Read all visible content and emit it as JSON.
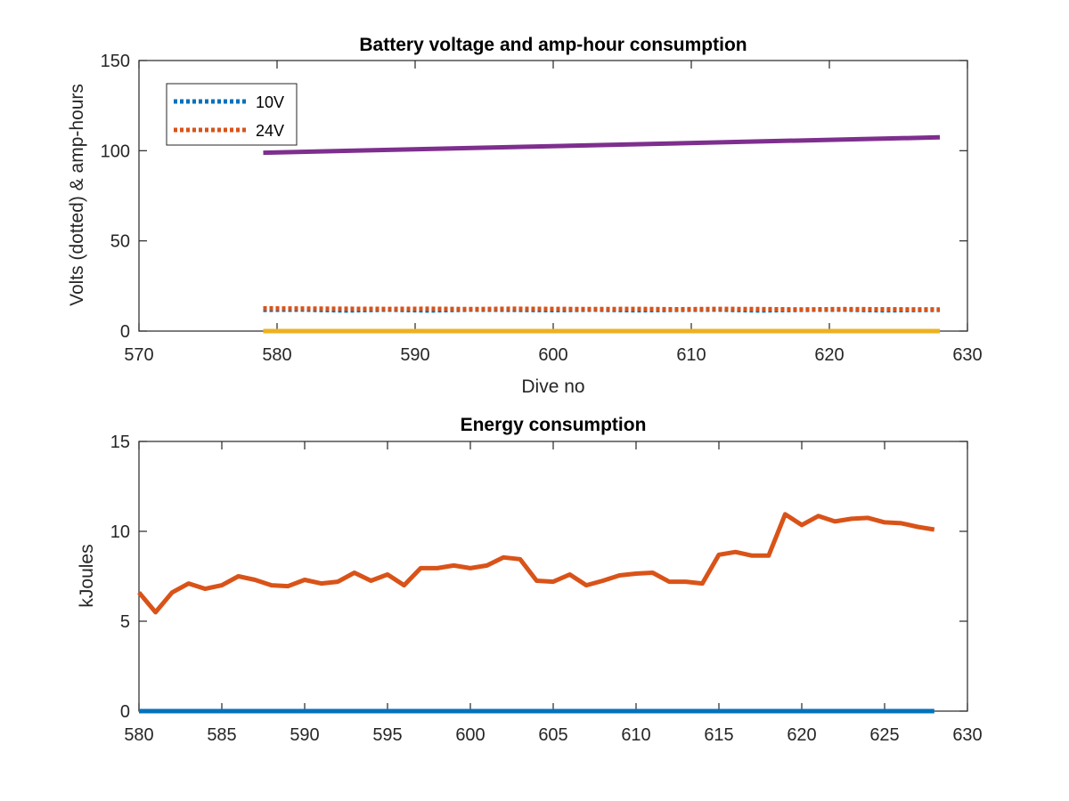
{
  "chart_data": [
    {
      "type": "line",
      "title": "Battery voltage and amp-hour consumption",
      "xlabel": "Dive no",
      "ylabel": "Volts (dotted) & amp-hours",
      "xlim": [
        570,
        630
      ],
      "ylim": [
        0,
        150
      ],
      "xticks": [
        570,
        580,
        590,
        600,
        610,
        620,
        630
      ],
      "yticks": [
        0,
        50,
        100,
        150
      ],
      "grid": false,
      "legend": {
        "position": "top-left",
        "entries": [
          "10V",
          "24V"
        ]
      },
      "series": [
        {
          "name": "10V",
          "style": "dotted",
          "color": "#0072BD",
          "x": [
            579,
            582,
            585,
            588,
            591,
            594,
            597,
            600,
            603,
            606,
            609,
            612,
            615,
            618,
            621,
            624,
            628
          ],
          "y": [
            11.8,
            11.9,
            11.4,
            11.9,
            11.4,
            11.9,
            11.8,
            11.6,
            11.9,
            11.5,
            11.8,
            11.9,
            11.4,
            11.8,
            11.9,
            11.5,
            11.8
          ]
        },
        {
          "name": "24V",
          "style": "dotted",
          "color": "#D95319",
          "x": [
            579,
            582,
            585,
            588,
            591,
            594,
            597,
            600,
            603,
            606,
            609,
            612,
            615,
            618,
            621,
            624,
            628
          ],
          "y": [
            12.6,
            12.5,
            12.4,
            12.3,
            12.4,
            12.2,
            12.4,
            12.3,
            12.2,
            12.3,
            12.1,
            12.3,
            12.2,
            12.0,
            12.2,
            12.1,
            12.0
          ]
        },
        {
          "style": "solid",
          "color": "#EDB120",
          "x": [
            579,
            628
          ],
          "y": [
            0,
            0
          ]
        },
        {
          "style": "solid",
          "color": "#7E2F8E",
          "x": [
            579,
            628
          ],
          "y": [
            98.9,
            107.4
          ]
        }
      ]
    },
    {
      "type": "line",
      "title": "Energy consumption",
      "xlabel": "",
      "ylabel": "kJoules",
      "xlim": [
        580,
        630
      ],
      "ylim": [
        0,
        15
      ],
      "xticks": [
        580,
        585,
        590,
        595,
        600,
        605,
        610,
        615,
        620,
        625,
        630
      ],
      "yticks": [
        0,
        5,
        10,
        15
      ],
      "grid": false,
      "series": [
        {
          "style": "solid",
          "color": "#0072BD",
          "x": [
            580,
            628
          ],
          "y": [
            0,
            0
          ]
        },
        {
          "style": "solid",
          "color": "#D95319",
          "x": [
            580,
            581,
            582,
            583,
            584,
            585,
            586,
            587,
            588,
            589,
            590,
            591,
            592,
            593,
            594,
            595,
            596,
            597,
            598,
            599,
            600,
            601,
            602,
            603,
            604,
            605,
            606,
            607,
            608,
            609,
            610,
            611,
            612,
            613,
            614,
            615,
            616,
            617,
            618,
            619,
            620,
            621,
            622,
            623,
            624,
            625,
            626,
            627,
            628
          ],
          "y": [
            6.6,
            5.5,
            6.6,
            7.1,
            6.8,
            7.0,
            7.5,
            7.3,
            7.0,
            6.95,
            7.3,
            7.1,
            7.2,
            7.7,
            7.25,
            7.6,
            7.0,
            7.95,
            7.95,
            8.1,
            7.95,
            8.1,
            8.55,
            8.45,
            7.25,
            7.2,
            7.6,
            7.0,
            7.25,
            7.55,
            7.65,
            7.7,
            7.2,
            7.2,
            7.1,
            8.7,
            8.85,
            8.65,
            8.65,
            10.95,
            10.35,
            10.85,
            10.55,
            10.7,
            10.75,
            10.5,
            10.45,
            10.25,
            10.1
          ]
        }
      ]
    }
  ]
}
